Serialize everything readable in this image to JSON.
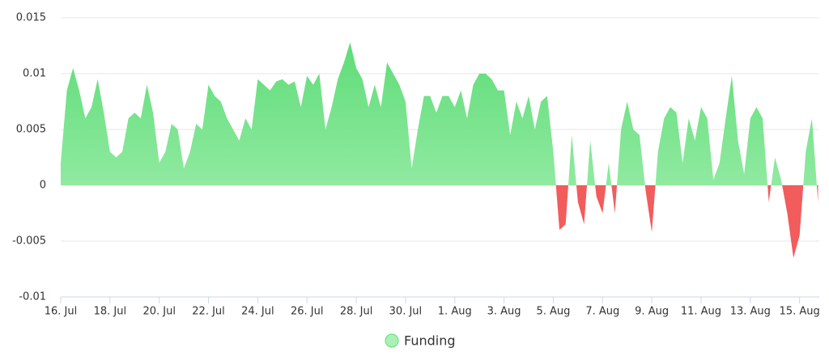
{
  "chart_data": {
    "type": "area",
    "x": [
      0,
      0.25,
      0.5,
      0.75,
      1,
      1.25,
      1.5,
      1.75,
      2,
      2.25,
      2.5,
      2.75,
      3,
      3.25,
      3.5,
      3.75,
      4,
      4.25,
      4.5,
      4.75,
      5,
      5.25,
      5.5,
      5.75,
      6,
      6.25,
      6.5,
      6.75,
      7,
      7.25,
      7.5,
      7.75,
      8,
      8.25,
      8.5,
      8.75,
      9,
      9.25,
      9.5,
      9.75,
      10,
      10.25,
      10.5,
      10.75,
      11,
      11.25,
      11.5,
      11.75,
      12,
      12.25,
      12.5,
      12.75,
      13,
      13.25,
      13.5,
      13.75,
      14,
      14.25,
      14.5,
      14.75,
      15,
      15.25,
      15.5,
      15.75,
      16,
      16.25,
      16.5,
      16.75,
      17,
      17.25,
      17.5,
      17.75,
      18,
      18.25,
      18.5,
      18.75,
      19,
      19.25,
      19.5,
      19.75,
      20,
      20.25,
      20.5,
      20.75,
      21,
      21.25,
      21.5,
      21.75,
      22,
      22.25,
      22.5,
      22.75,
      23,
      23.25,
      23.5,
      23.75,
      24,
      24.25,
      24.5,
      24.75,
      25,
      25.25,
      25.5,
      25.75,
      26,
      26.25,
      26.5,
      26.75,
      27,
      27.25,
      27.5,
      27.75,
      28,
      28.25,
      28.5,
      28.75,
      29,
      29.25,
      29.5,
      29.75,
      30,
      30.25,
      30.5,
      30.75
    ],
    "series": [
      {
        "name": "Funding",
        "color": "#5fdc78",
        "color_light": "#a9f1b5",
        "negative_color": "#f25c5c",
        "values": [
          0.002,
          0.0085,
          0.0105,
          0.0085,
          0.006,
          0.007,
          0.0095,
          0.0065,
          0.003,
          0.0025,
          0.003,
          0.006,
          0.0065,
          0.006,
          0.009,
          0.0065,
          0.002,
          0.003,
          0.0055,
          0.005,
          0.0015,
          0.003,
          0.0055,
          0.005,
          0.009,
          0.008,
          0.0075,
          0.006,
          0.005,
          0.004,
          0.006,
          0.005,
          0.0095,
          0.009,
          0.0085,
          0.0093,
          0.0095,
          0.009,
          0.0093,
          0.007,
          0.0098,
          0.009,
          0.01,
          0.005,
          0.007,
          0.0095,
          0.011,
          0.0128,
          0.0105,
          0.0095,
          0.007,
          0.009,
          0.007,
          0.011,
          0.01,
          0.009,
          0.0075,
          0.0015,
          0.005,
          0.008,
          0.008,
          0.0065,
          0.008,
          0.008,
          0.007,
          0.0085,
          0.006,
          0.009,
          0.01,
          0.01,
          0.0095,
          0.0085,
          0.0085,
          0.0045,
          0.0075,
          0.006,
          0.008,
          0.005,
          0.0075,
          0.008,
          0.003,
          -0.004,
          -0.0035,
          0.0045,
          -0.0015,
          -0.0035,
          0.004,
          -0.001,
          -0.0025,
          0.002,
          -0.0025,
          0.005,
          0.0075,
          0.005,
          0.0045,
          -0.0005,
          -0.0042,
          0.003,
          0.006,
          0.007,
          0.0065,
          0.002,
          0.006,
          0.004,
          0.007,
          0.006,
          0.0005,
          0.002,
          0.006,
          0.0098,
          0.004,
          0.001,
          0.006,
          0.007,
          0.006,
          -0.0015,
          0.0025,
          0.0005,
          -0.0025,
          -0.0065,
          -0.0045,
          0.003,
          0.006,
          -0.0015
        ]
      }
    ],
    "xlim": [
      0,
      30.8
    ],
    "xticks": [
      {
        "value": 0,
        "label": "16. Jul"
      },
      {
        "value": 2,
        "label": "18. Jul"
      },
      {
        "value": 4,
        "label": "20. Jul"
      },
      {
        "value": 6,
        "label": "22. Jul"
      },
      {
        "value": 8,
        "label": "24. Jul"
      },
      {
        "value": 10,
        "label": "26. Jul"
      },
      {
        "value": 12,
        "label": "28. Jul"
      },
      {
        "value": 14,
        "label": "30. Jul"
      },
      {
        "value": 16,
        "label": "1. Aug"
      },
      {
        "value": 18,
        "label": "3. Aug"
      },
      {
        "value": 20,
        "label": "5. Aug"
      },
      {
        "value": 22,
        "label": "7. Aug"
      },
      {
        "value": 24,
        "label": "9. Aug"
      },
      {
        "value": 26,
        "label": "11. Aug"
      },
      {
        "value": 28,
        "label": "13. Aug"
      },
      {
        "value": 30,
        "label": "15. Aug"
      }
    ],
    "ylim": [
      -0.01,
      0.015
    ],
    "yticks": [
      -0.01,
      -0.005,
      0,
      0.005,
      0.01,
      0.015
    ],
    "grid": true,
    "legend": "bottom"
  }
}
